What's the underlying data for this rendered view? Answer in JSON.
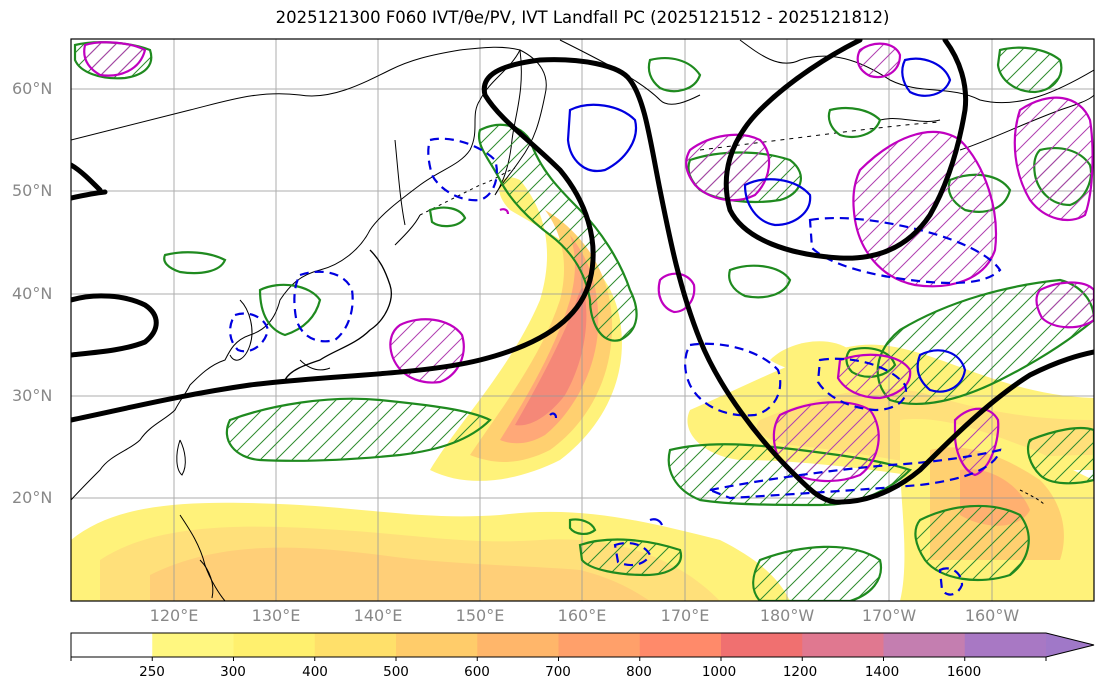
{
  "title": "2025121300 F060 IVT/θe/PV, IVT Landfall PC (2025121512 - 2025121812)",
  "map": {
    "lat_labels": [
      "60°N",
      "50°N",
      "40°N",
      "30°N",
      "20°N"
    ],
    "lon_labels": [
      "120°E",
      "130°E",
      "140°E",
      "150°E",
      "160°E",
      "170°E",
      "180°W",
      "170°W",
      "160°W"
    ]
  },
  "colorbar": {
    "labels": [
      "250",
      "300",
      "400",
      "500",
      "600",
      "700",
      "800",
      "1000",
      "1200",
      "1400",
      "1600"
    ],
    "colors": [
      "#ffffff",
      "#fff780",
      "#fff06e",
      "#ffe06a",
      "#ffcc6a",
      "#ffb66a",
      "#ffa06a",
      "#ff8a6a",
      "#f07070",
      "#e07890",
      "#c47eb0",
      "#a878c4"
    ]
  }
}
